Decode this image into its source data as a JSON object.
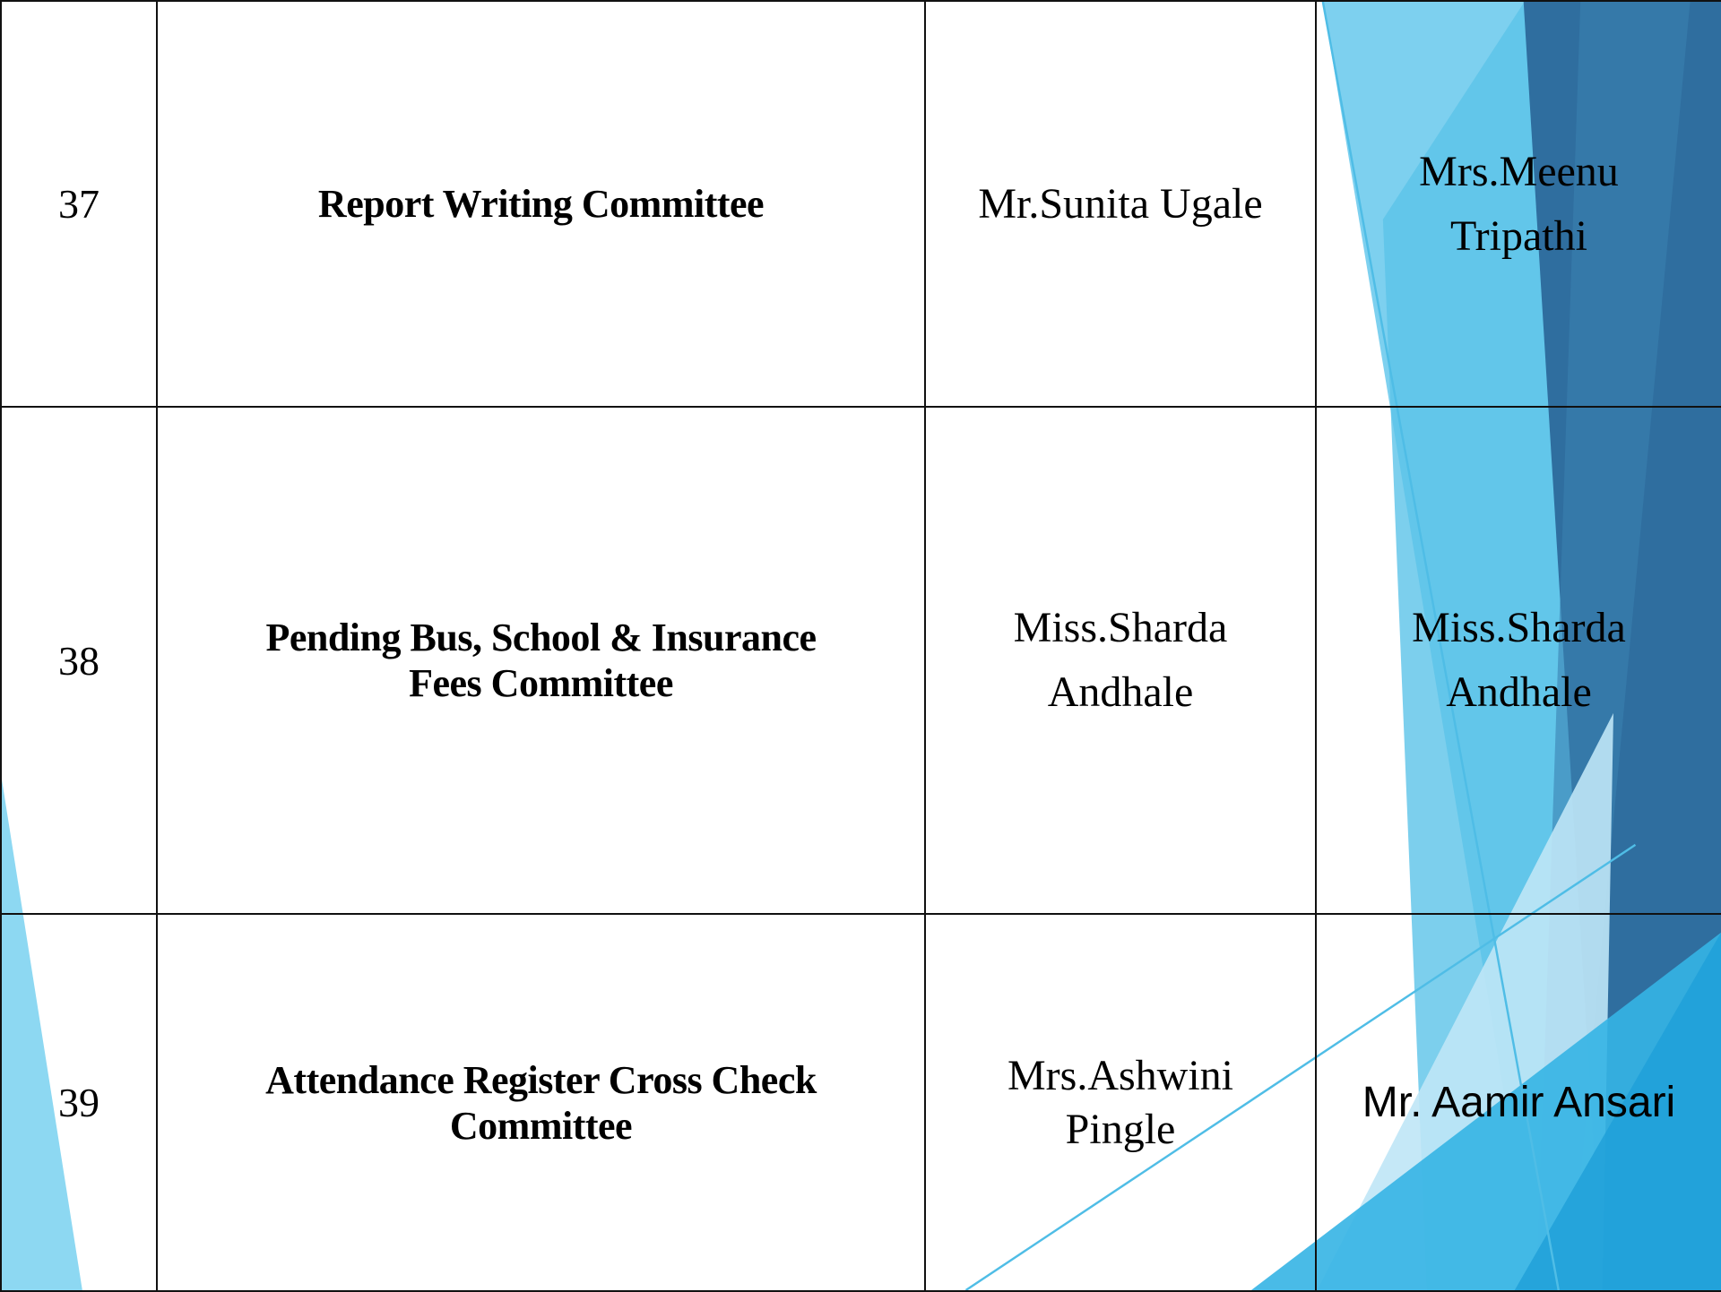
{
  "table": {
    "rows": [
      [
        "37",
        "Report Writing Committee",
        "Mr.Sunita Ugale",
        "Mrs.Meenu Tripathi"
      ],
      [
        "38",
        "Pending Bus, School & Insurance Fees Committee",
        "Miss.Sharda Andhale",
        "Miss.Sharda Andhale"
      ],
      [
        "39",
        "Attendance Register Cross Check Committee",
        "Mrs.Ashwini Pingle",
        "Mr. Aamir Ansari"
      ]
    ]
  }
}
